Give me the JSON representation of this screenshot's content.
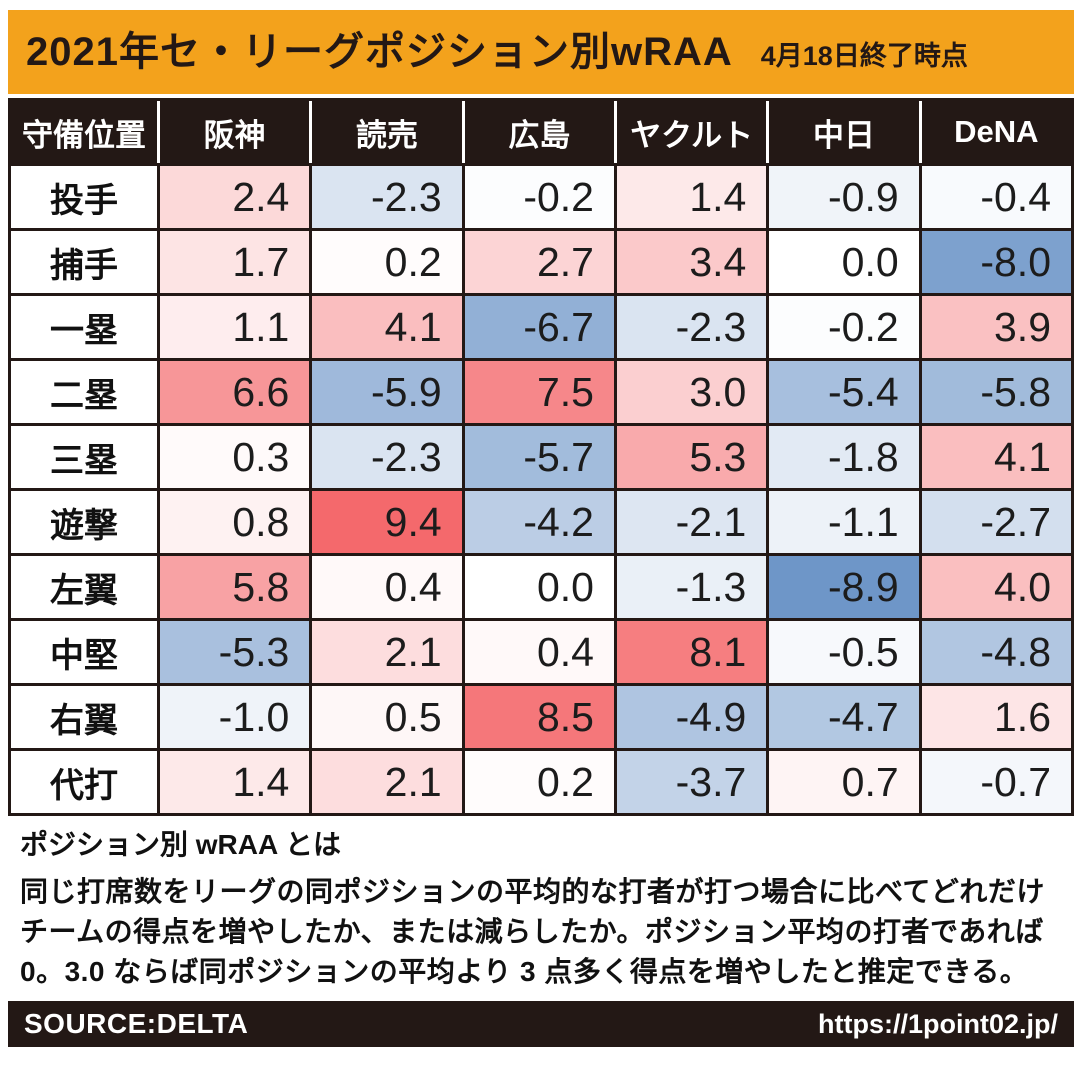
{
  "banner": {
    "title": "2021年セ・リーグポジション別wRAA",
    "subtitle": "4月18日終了時点"
  },
  "chart_data": {
    "type": "heatmap",
    "title": "2021年セ・リーグポジション別wRAA",
    "subtitle": "4月18日終了時点",
    "row_axis_label": "守備位置",
    "columns": [
      "阪神",
      "読売",
      "広島",
      "ヤクルト",
      "中日",
      "DeNA"
    ],
    "rows": [
      "投手",
      "捕手",
      "一塁",
      "二塁",
      "三塁",
      "遊撃",
      "左翼",
      "中堅",
      "右翼",
      "代打"
    ],
    "values": [
      [
        2.4,
        -2.3,
        -0.2,
        1.4,
        -0.9,
        -0.4
      ],
      [
        1.7,
        0.2,
        2.7,
        3.4,
        0.0,
        -8.0
      ],
      [
        1.1,
        4.1,
        -6.7,
        -2.3,
        -0.2,
        3.9
      ],
      [
        6.6,
        -5.9,
        7.5,
        3.0,
        -5.4,
        -5.8
      ],
      [
        0.3,
        -2.3,
        -5.7,
        5.3,
        -1.8,
        4.1
      ],
      [
        0.8,
        9.4,
        -4.2,
        -2.1,
        -1.1,
        -2.7
      ],
      [
        5.8,
        0.4,
        0.0,
        -1.3,
        -8.9,
        4.0
      ],
      [
        -5.3,
        2.1,
        0.4,
        8.1,
        -0.5,
        -4.8
      ],
      [
        -1.0,
        0.5,
        8.5,
        -4.9,
        -4.7,
        1.6
      ],
      [
        1.4,
        2.1,
        0.2,
        -3.7,
        0.7,
        -0.7
      ]
    ],
    "value_format": "one_decimal",
    "color_scale": {
      "positive_color": "#f4696c",
      "negative_color": "#6e96c8",
      "zero_color": "#ffffff",
      "positive_max": 9.4,
      "negative_max": 8.9
    },
    "legend_position": "none",
    "grid": "on"
  },
  "description": {
    "heading": "ポジション別 wRAA とは",
    "body": "同じ打席数をリーグの同ポジションの平均的な打者が打つ場合に比べてどれだけチームの得点を増やしたか、または減らしたか。ポジション平均の打者であれば 0。3.0 ならば同ポジションの平均より 3 点多く得点を増やしたと推定できる。"
  },
  "footer": {
    "source": "SOURCE:DELTA",
    "url": "https://1point02.jp/"
  },
  "colors": {
    "banner_bg": "#f3a21c",
    "ink_dark": "#231815",
    "heat_positive": "#f4696c",
    "heat_negative": "#6e96c8"
  }
}
